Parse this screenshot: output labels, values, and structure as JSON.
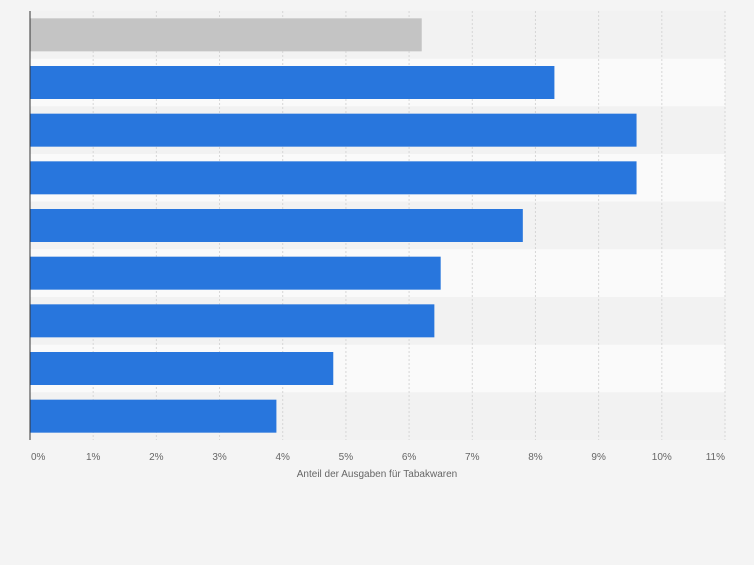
{
  "chart_data": {
    "type": "bar",
    "orientation": "horizontal",
    "categories": [
      "",
      "",
      "",
      "",
      "",
      "",
      "",
      "",
      ""
    ],
    "values": [
      6.2,
      8.3,
      9.6,
      9.6,
      7.8,
      6.5,
      6.4,
      4.8,
      3.9
    ],
    "bar_colors": [
      "#c4c4c4",
      "#2876dd",
      "#2876dd",
      "#2876dd",
      "#2876dd",
      "#2876dd",
      "#2876dd",
      "#2876dd",
      "#2876dd"
    ],
    "xlim": [
      0,
      11
    ],
    "xticks": [
      0,
      1,
      2,
      3,
      4,
      5,
      6,
      7,
      8,
      9,
      10,
      11
    ],
    "xtick_labels": [
      "0%",
      "1%",
      "2%",
      "3%",
      "4%",
      "5%",
      "6%",
      "7%",
      "8%",
      "9%",
      "10%",
      "11%"
    ],
    "xlabel": "Anteil der Ausgaben für Tabakwaren",
    "grid": true
  },
  "colors": {
    "background": "#f4f4f4",
    "band_even": "#f2f2f2",
    "band_odd": "#fafafa",
    "grid": "#d6d6d6",
    "axis": "#333333",
    "text": "#666666"
  }
}
